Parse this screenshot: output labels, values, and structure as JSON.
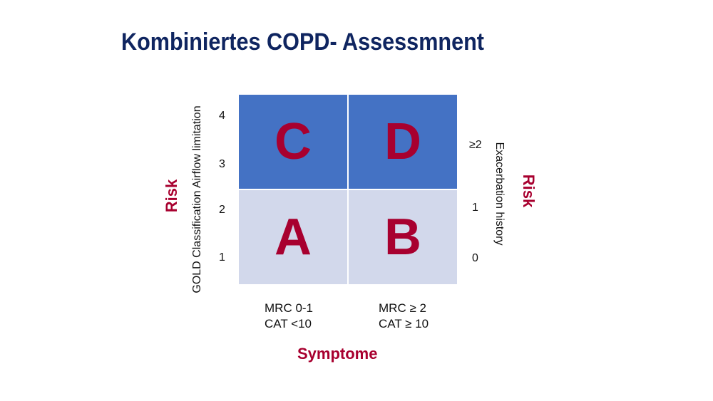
{
  "title": "Kombiniertes COPD- Assessmnent",
  "quadrants": {
    "top_left": "C",
    "top_right": "D",
    "bottom_left": "A",
    "bottom_right": "B"
  },
  "left_axis": {
    "label": "GOLD Classification Airflow limitation",
    "ticks": [
      "4",
      "3",
      "2",
      "1"
    ],
    "risk_label": "Risk"
  },
  "right_axis": {
    "label": "Exacerbation history",
    "ticks": [
      "≥2",
      "1",
      "0"
    ],
    "risk_label": "Risk"
  },
  "columns": {
    "left": {
      "line1": "MRC 0-1",
      "line2": "CAT <10"
    },
    "right": {
      "line1": "MRC ≥ 2",
      "line2": "CAT ≥ 10"
    }
  },
  "x_axis_label": "Symptome",
  "colors": {
    "title": "#0f2560",
    "accent": "#a8002f",
    "high_risk_fill": "#4472c4",
    "low_risk_fill": "#d2d8eb"
  }
}
